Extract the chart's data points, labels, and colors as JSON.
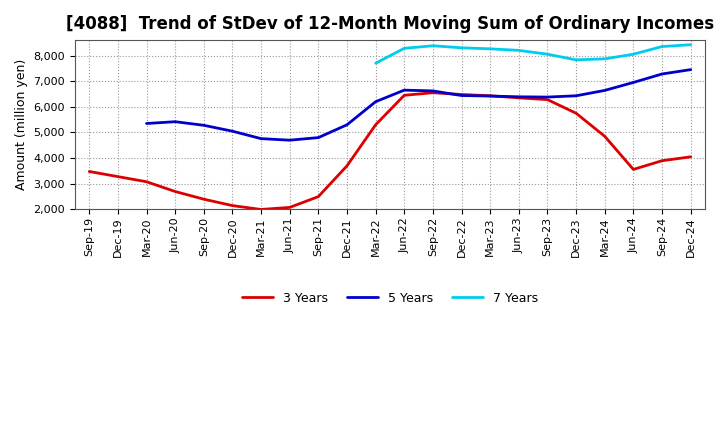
{
  "title": "[4088]  Trend of StDev of 12-Month Moving Sum of Ordinary Incomes",
  "ylabel": "Amount (million yen)",
  "background_color": "#ffffff",
  "plot_bg_color": "#ffffff",
  "grid_color": "#999999",
  "title_fontsize": 12,
  "label_fontsize": 9,
  "tick_fontsize": 8,
  "x_labels": [
    "Sep-19",
    "Dec-19",
    "Mar-20",
    "Jun-20",
    "Sep-20",
    "Dec-20",
    "Mar-21",
    "Jun-21",
    "Sep-21",
    "Dec-21",
    "Mar-22",
    "Jun-22",
    "Sep-22",
    "Dec-22",
    "Mar-23",
    "Jun-23",
    "Sep-23",
    "Dec-23",
    "Mar-24",
    "Jun-24",
    "Sep-24",
    "Dec-24"
  ],
  "ylim": [
    2000,
    8600
  ],
  "yticks": [
    2000,
    3000,
    4000,
    5000,
    6000,
    7000,
    8000
  ],
  "series_3y": [
    3480,
    3280,
    3080,
    2700,
    2400,
    2150,
    2000,
    2080,
    2500,
    3700,
    5300,
    6450,
    6550,
    6480,
    6430,
    6350,
    6280,
    5750,
    4850,
    3560,
    3900,
    4050
  ],
  "series_5y": [
    null,
    null,
    5350,
    5420,
    5280,
    5050,
    4760,
    4700,
    4800,
    5300,
    6200,
    6650,
    6620,
    6440,
    6420,
    6390,
    6380,
    6430,
    6640,
    6950,
    7280,
    7450
  ],
  "series_7y": [
    null,
    null,
    null,
    null,
    null,
    null,
    null,
    null,
    null,
    null,
    7700,
    8280,
    8380,
    8300,
    8260,
    8200,
    8050,
    7830,
    7870,
    8050,
    8350,
    8420
  ],
  "series_10y": [
    null,
    null,
    null,
    null,
    null,
    null,
    null,
    null,
    null,
    null,
    null,
    null,
    null,
    null,
    null,
    null,
    null,
    null,
    null,
    null,
    null,
    null
  ],
  "colors": {
    "3 Years": "#dd0000",
    "5 Years": "#0000cc",
    "7 Years": "#00ccee",
    "10 Years": "#007700"
  },
  "linewidth": 2.0
}
